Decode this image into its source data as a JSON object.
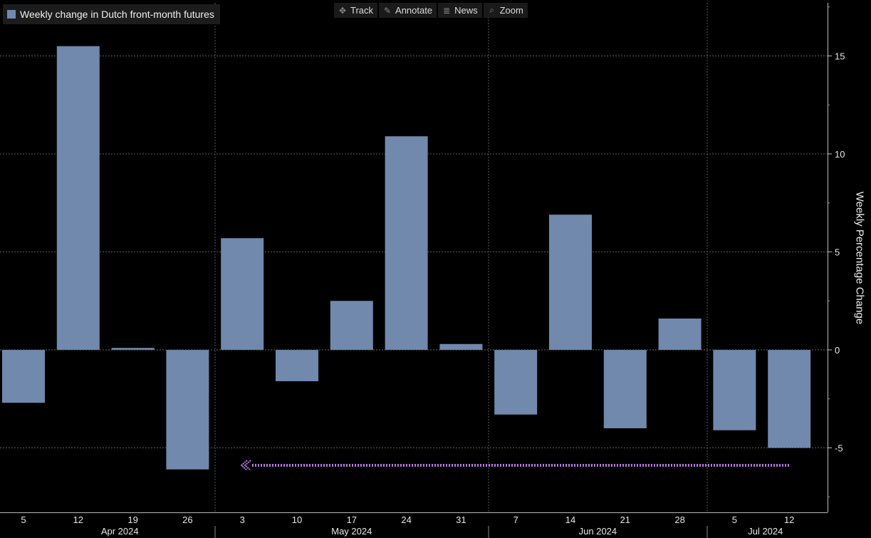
{
  "legend": {
    "label": "Weekly change in Dutch front-month futures",
    "color": "#7089ad"
  },
  "toolbar": [
    {
      "label": "Track",
      "icon": "crosshair-icon"
    },
    {
      "label": "Annotate",
      "icon": "pencil-icon"
    },
    {
      "label": "News",
      "icon": "news-icon"
    },
    {
      "label": "Zoom",
      "icon": "zoom-icon"
    }
  ],
  "chart_data": {
    "type": "bar",
    "x": [
      "5",
      "12",
      "19",
      "26",
      "3",
      "10",
      "17",
      "24",
      "31",
      "7",
      "14",
      "21",
      "28",
      "5",
      "12"
    ],
    "values": [
      -2.7,
      15.5,
      0.1,
      -6.1,
      5.7,
      -1.6,
      2.5,
      10.9,
      0.3,
      -3.3,
      6.9,
      -4.0,
      1.6,
      -4.1,
      -5.0
    ],
    "months": [
      "Apr 2024",
      "May 2024",
      "Jun 2024",
      "Jul 2024"
    ],
    "ylabel": "Weekly Percentage Change",
    "yticks": [
      15,
      10,
      5,
      0,
      -5
    ],
    "ylim": [
      -8.3,
      17.8
    ],
    "axis_side": "right",
    "grid": true,
    "bar_color": "#7089ad",
    "marker_color": "#b678e0"
  }
}
